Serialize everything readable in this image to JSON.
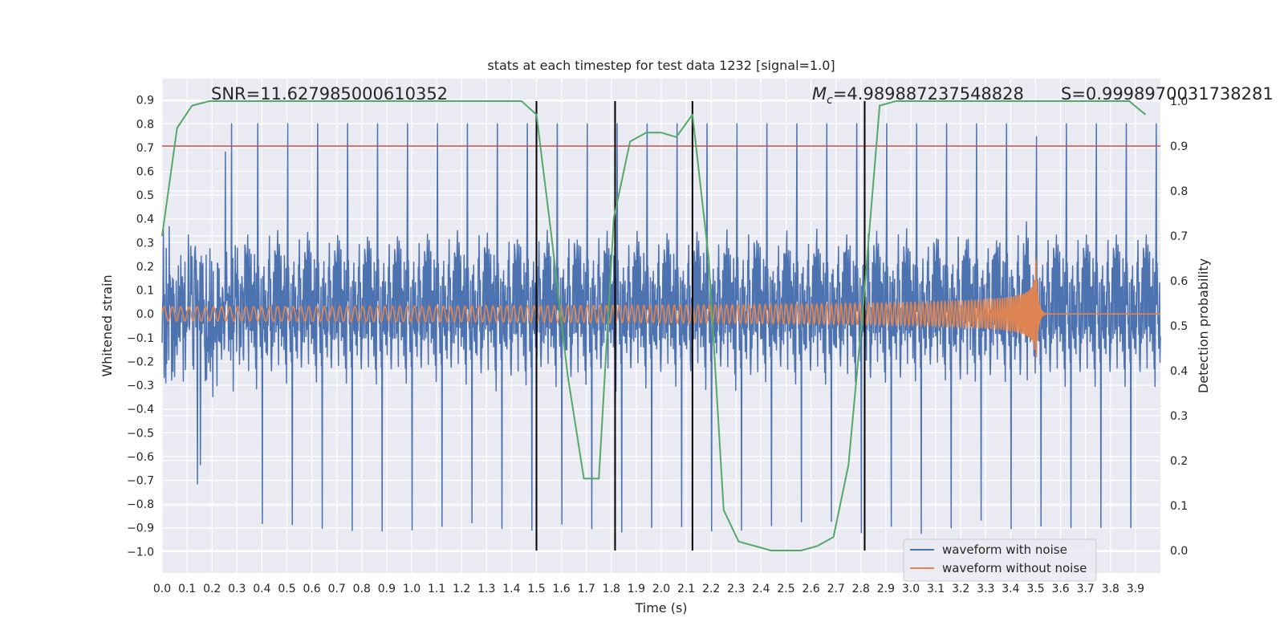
{
  "chart_data": {
    "type": "line",
    "title": "stats at each timestep for test data 1232 [signal=1.0]",
    "xlabel": "Time (s)",
    "ylabel": "Whitened strain",
    "y2label": "Detection probability",
    "xlim": [
      0.0,
      4.0
    ],
    "ylim": [
      -1.09,
      0.99
    ],
    "y2lim": [
      -0.05,
      1.05
    ],
    "xticks": [
      "0.0",
      "0.1",
      "0.2",
      "0.3",
      "0.4",
      "0.5",
      "0.6",
      "0.7",
      "0.8",
      "0.9",
      "1.0",
      "1.1",
      "1.2",
      "1.3",
      "1.4",
      "1.5",
      "1.6",
      "1.7",
      "1.8",
      "1.9",
      "2.0",
      "2.1",
      "2.2",
      "2.3",
      "2.4",
      "2.5",
      "2.6",
      "2.7",
      "2.8",
      "2.9",
      "3.0",
      "3.1",
      "3.2",
      "3.3",
      "3.4",
      "3.5",
      "3.6",
      "3.7",
      "3.8",
      "3.9"
    ],
    "yticks": [
      "0.9",
      "0.8",
      "0.7",
      "0.6",
      "0.5",
      "0.4",
      "0.3",
      "0.2",
      "0.1",
      "0.0",
      "−0.1",
      "−0.2",
      "−0.3",
      "−0.4",
      "−0.5",
      "−0.6",
      "−0.7",
      "−0.8",
      "−0.9",
      "−1.0"
    ],
    "y2ticks": [
      "1.0",
      "0.9",
      "0.8",
      "0.7",
      "0.6",
      "0.5",
      "0.4",
      "0.3",
      "0.2",
      "0.1",
      "0.0"
    ],
    "annotations": {
      "snr": "SNR=11.627985000610352",
      "mc_symbol": "M",
      "mc_sub": "c",
      "mc_value": "=4.989887237548828",
      "s": "S=0.9998970031738281"
    },
    "threshold": {
      "axis": "y2",
      "value": 0.9,
      "color": "#c44e52"
    },
    "vlines_x": [
      1.5,
      1.815,
      2.125,
      2.815
    ],
    "series": [
      {
        "name": "waveform with noise",
        "color": "#4c72b0",
        "kind": "noise",
        "amplitude_typical": 0.4,
        "amplitude_peak": 1.0,
        "x_range": [
          0.0,
          4.0
        ]
      },
      {
        "name": "waveform without noise",
        "color": "#dd8452",
        "kind": "chirp",
        "merger_time": 3.5,
        "amplitude_start": 0.03,
        "amplitude_peak": 0.29,
        "x_range": [
          0.0,
          4.0
        ]
      },
      {
        "name": "detection probability",
        "color": "#55a868",
        "axis": "y2",
        "x": [
          0.0,
          0.06,
          0.12,
          0.19,
          0.25,
          0.31,
          0.375,
          0.44,
          0.5,
          0.56,
          0.625,
          0.69,
          0.75,
          0.81,
          0.875,
          0.94,
          1.0,
          1.06,
          1.125,
          1.19,
          1.25,
          1.31,
          1.375,
          1.44,
          1.5,
          1.56,
          1.625,
          1.69,
          1.75,
          1.81,
          1.875,
          1.94,
          2.0,
          2.06,
          2.125,
          2.19,
          2.25,
          2.31,
          2.375,
          2.44,
          2.5,
          2.56,
          2.625,
          2.69,
          2.75,
          2.81,
          2.875,
          2.94,
          3.0,
          3.06,
          3.125,
          3.19,
          3.25,
          3.31,
          3.375,
          3.44,
          3.5,
          3.56,
          3.625,
          3.69,
          3.75,
          3.81,
          3.875,
          3.94
        ],
        "y": [
          0.7,
          0.94,
          0.99,
          1.0,
          1.0,
          1.0,
          1.0,
          1.0,
          1.0,
          1.0,
          1.0,
          1.0,
          1.0,
          1.0,
          1.0,
          1.0,
          1.0,
          1.0,
          1.0,
          1.0,
          1.0,
          1.0,
          1.0,
          1.0,
          0.97,
          0.7,
          0.39,
          0.16,
          0.16,
          0.74,
          0.91,
          0.93,
          0.93,
          0.92,
          0.97,
          0.65,
          0.09,
          0.02,
          0.01,
          0.0,
          0.0,
          0.0,
          0.01,
          0.03,
          0.19,
          0.55,
          0.99,
          1.0,
          1.0,
          1.0,
          1.0,
          1.0,
          1.0,
          1.0,
          1.0,
          1.0,
          1.0,
          1.0,
          1.0,
          1.0,
          1.0,
          1.0,
          1.0,
          0.97
        ]
      }
    ],
    "legend": {
      "placement": "lower-right",
      "entries": [
        "waveform with noise",
        "waveform without noise"
      ]
    },
    "grid": true,
    "colors": {
      "axes_bg": "#eaeaf2",
      "grid": "#ffffff",
      "vline": "#000000"
    }
  }
}
